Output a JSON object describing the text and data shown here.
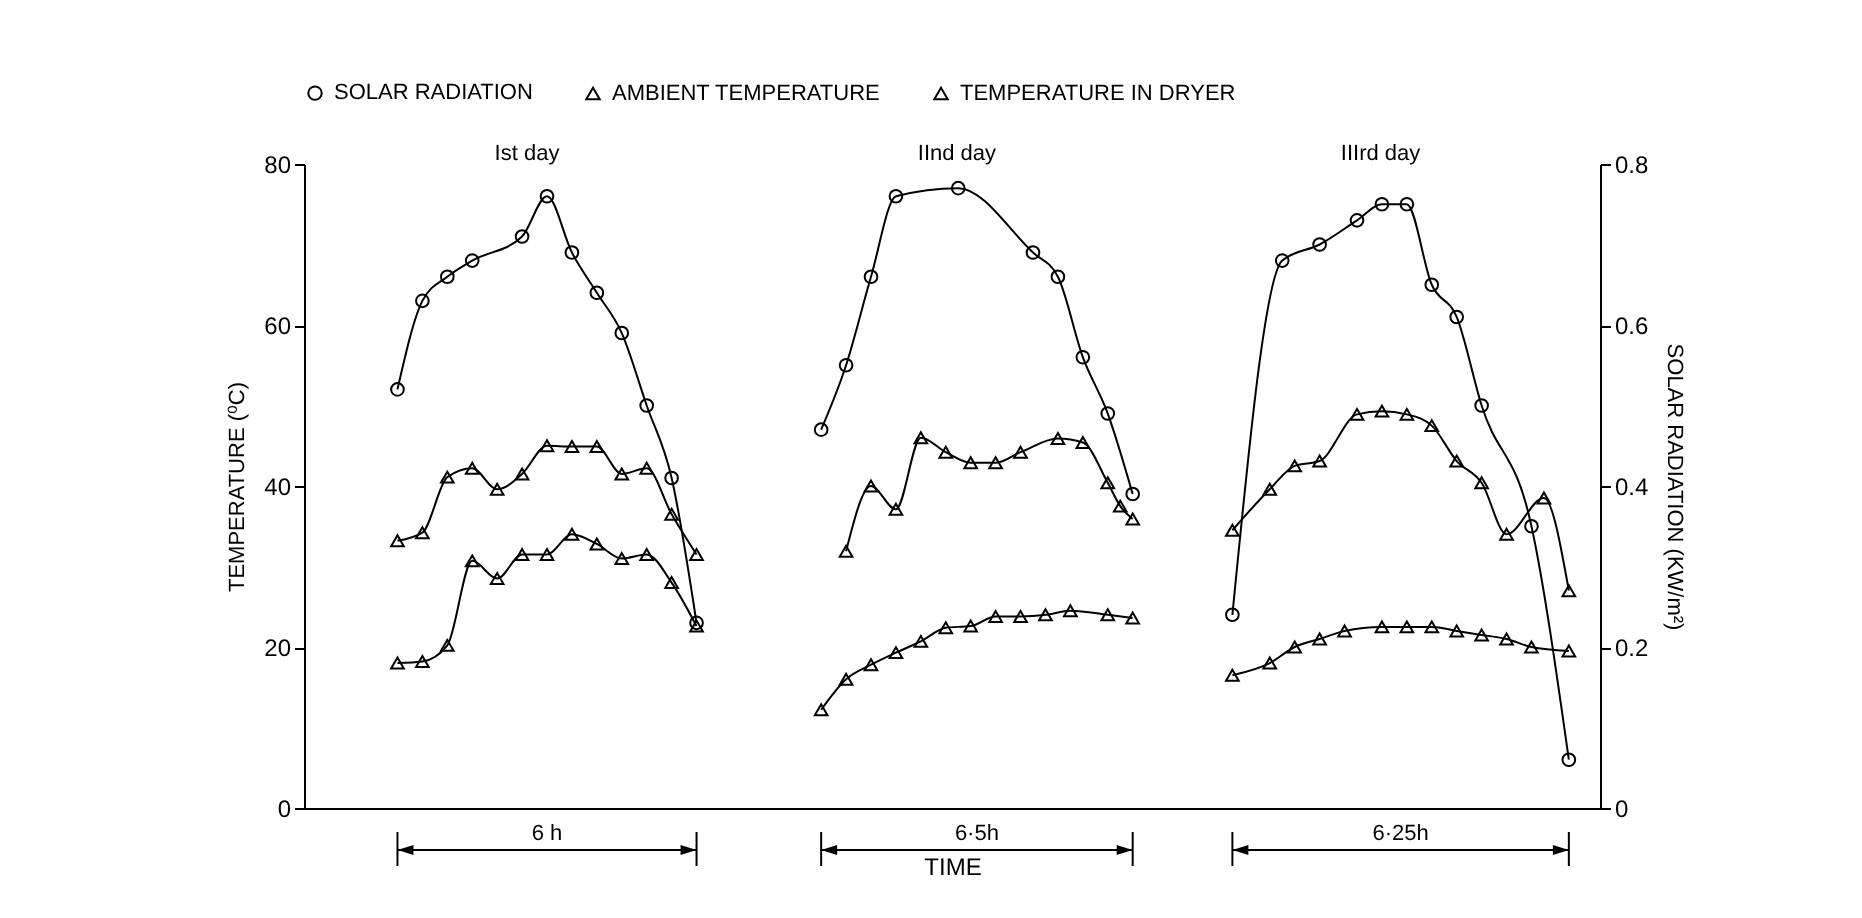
{
  "chart_data": {
    "type": "line",
    "categories": [
      null,
      null,
      null,
      null,
      null,
      null,
      null,
      null,
      null,
      null,
      null,
      null,
      null,
      null,
      null,
      null,
      null,
      null,
      null,
      null,
      null,
      null,
      null,
      null,
      null,
      null,
      null,
      null,
      null,
      null,
      null,
      null,
      null,
      null,
      null,
      null,
      null,
      null,
      null,
      null,
      null,
      null,
      null,
      null,
      null,
      null,
      null,
      null,
      null,
      null,
      null,
      null,
      null,
      null,
      null,
      null,
      null,
      null,
      null,
      null,
      null,
      null,
      null,
      null,
      null,
      null,
      null,
      null,
      null,
      null,
      null,
      null,
      null,
      null,
      null,
      null,
      null,
      null,
      null,
      null,
      null,
      null,
      null,
      null,
      null,
      null,
      null,
      null,
      null,
      null,
      null,
      null,
      null,
      null,
      null,
      null,
      null,
      null,
      null,
      null,
      null,
      null,
      null,
      null
    ],
    "xlabel": "TIME",
    "ylabel": "TEMPERATURE (⁰C)",
    "y2label": "SOLAR RADIATION (KW/m²)",
    "ylim": [
      0,
      80
    ],
    "yticks": [
      0,
      20,
      40,
      60,
      80
    ],
    "y2lim": [
      0,
      0.8
    ],
    "y2ticks": [
      0,
      0.2,
      0.4,
      0.6,
      0.8
    ],
    "legend": "top",
    "annotations": [
      "Ist day",
      "IInd day",
      "IIIrd day",
      "6 h",
      "6·5h",
      "6·25h"
    ],
    "series": [
      {
        "name": "SOLAR RADIATION",
        "color": "#000000",
        "marker": "circle",
        "axis": "y2",
        "values": [
          null,
          null,
          null,
          null,
          null,
          null,
          null,
          0.52,
          null,
          0.63,
          null,
          0.66,
          null,
          0.68,
          null,
          null,
          null,
          0.71,
          null,
          0.76,
          null,
          0.69,
          null,
          0.64,
          null,
          0.59,
          null,
          0.5,
          null,
          0.41,
          null,
          0.23,
          null,
          null,
          null,
          null,
          null,
          null,
          null,
          null,
          null,
          0.47,
          null,
          0.55,
          null,
          0.66,
          null,
          0.76,
          null,
          null,
          null,
          null,
          0.77,
          null,
          null,
          null,
          null,
          null,
          0.69,
          null,
          0.66,
          null,
          0.56,
          null,
          0.49,
          null,
          0.39,
          null,
          null,
          null,
          null,
          null,
          null,
          null,
          0.24,
          null,
          null,
          null,
          0.68,
          null,
          null,
          0.7,
          null,
          null,
          0.73,
          null,
          0.75,
          null,
          0.75,
          null,
          0.65,
          null,
          0.61,
          null,
          0.5,
          null,
          null,
          null,
          0.35,
          null,
          null,
          0.06,
          null,
          null
        ]
      },
      {
        "name": "AMBIENT TEMPERATURE",
        "color": "#000000",
        "marker": "triangle",
        "values": [
          null,
          null,
          null,
          null,
          null,
          null,
          null,
          18,
          null,
          18.2,
          null,
          20.2,
          null,
          30.7,
          null,
          28.5,
          null,
          31.5,
          null,
          31.5,
          null,
          34,
          null,
          32.8,
          null,
          31,
          null,
          31.5,
          null,
          28,
          null,
          22.6,
          null,
          null,
          null,
          null,
          null,
          null,
          null,
          null,
          null,
          12.2,
          null,
          16,
          null,
          17.8,
          null,
          19.3,
          null,
          20.7,
          null,
          22.4,
          null,
          22.6,
          null,
          23.8,
          null,
          23.8,
          null,
          24,
          null,
          24.5,
          null,
          null,
          24,
          null,
          23.6,
          null,
          null,
          null,
          null,
          null,
          null,
          null,
          16.5,
          null,
          null,
          18,
          null,
          20,
          null,
          21,
          null,
          22,
          null,
          null,
          22.5,
          null,
          22.5,
          null,
          22.5,
          null,
          22,
          null,
          21.5,
          null,
          21,
          null,
          20,
          null,
          null,
          19.5,
          null,
          null
        ]
      },
      {
        "name": "TEMPERATURE IN DRYER",
        "color": "#000000",
        "marker": "triangle",
        "values": [
          null,
          null,
          null,
          null,
          null,
          null,
          null,
          33.2,
          null,
          34.2,
          null,
          41.1,
          null,
          42.2,
          null,
          39.6,
          null,
          41.5,
          null,
          45,
          null,
          44.9,
          null,
          44.9,
          null,
          41.5,
          null,
          42.2,
          null,
          36.5,
          null,
          31.5,
          null,
          null,
          null,
          null,
          null,
          null,
          null,
          null,
          null,
          null,
          null,
          31.9,
          null,
          40,
          null,
          37.1,
          null,
          46,
          null,
          44.2,
          null,
          42.9,
          null,
          42.9,
          null,
          44.2,
          null,
          null,
          45.9,
          null,
          45.4,
          null,
          40.4,
          37.5,
          35.9,
          null,
          null,
          null,
          null,
          null,
          null,
          null,
          34.5,
          null,
          null,
          39.6,
          null,
          42.5,
          null,
          43.1,
          null,
          null,
          48.9,
          null,
          49.3,
          null,
          48.9,
          null,
          47.5,
          null,
          43.1,
          null,
          40.4,
          null,
          34,
          null,
          null,
          38.5,
          null,
          27,
          null,
          null
        ]
      }
    ]
  }
}
